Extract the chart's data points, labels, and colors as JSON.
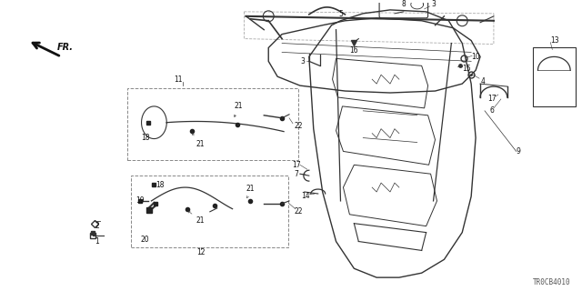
{
  "part_code": "TR0CB4010",
  "bg_color": "#ffffff",
  "fig_width": 6.4,
  "fig_height": 3.2,
  "line_color": "#333333",
  "label_color": "#111111",
  "label_fs": 5.5,
  "box_color": "#888888"
}
